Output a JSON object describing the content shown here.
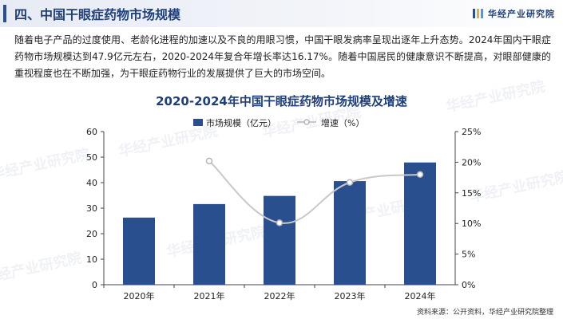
{
  "header": {
    "title": "四、中国干眼症药物市场规模",
    "logo_text": "华经产业研究院"
  },
  "intro": "随着电子产品的过度使用、老龄化进程的加速以及不良的用眼习惯，中国干眼发病率呈现出逐年上升态势。2024年国内干眼症药物市场规模达到47.9亿元左右，2020-2024年复合年增长率达16.17%。随着中国居民的健康意识不断提高，对眼部健康的重视程度也在不断加强，为干眼症药物行业的发展提供了巨大的市场空间。",
  "source": "资料来源：公开资料，华经产业研究院整理",
  "watermark": "华经产业研究院",
  "colors": {
    "bar": "#2a4f8f",
    "line": "#c8c8c8",
    "title": "#1f3f7a"
  },
  "chart_data": {
    "type": "bar+line",
    "title": "2020-2024年中国干眼症药物市场规模及增速",
    "categories": [
      "2020年",
      "2021年",
      "2022年",
      "2023年",
      "2024年"
    ],
    "series": [
      {
        "name": "市场规模（亿元）",
        "type": "bar",
        "axis": "left",
        "values": [
          26.3,
          31.6,
          34.8,
          40.6,
          47.9
        ]
      },
      {
        "name": "增速（%）",
        "type": "line",
        "axis": "right",
        "values": [
          null,
          20.2,
          10.1,
          16.7,
          18.0
        ]
      }
    ],
    "y_left": {
      "min": 0,
      "max": 60,
      "ticks": [
        0,
        10,
        20,
        30,
        40,
        50,
        60
      ]
    },
    "y_right": {
      "min": 0,
      "max": 25,
      "ticks": [
        "0%",
        "5%",
        "10%",
        "15%",
        "20%",
        "25%"
      ]
    },
    "legend_position": "top",
    "grid": false
  }
}
